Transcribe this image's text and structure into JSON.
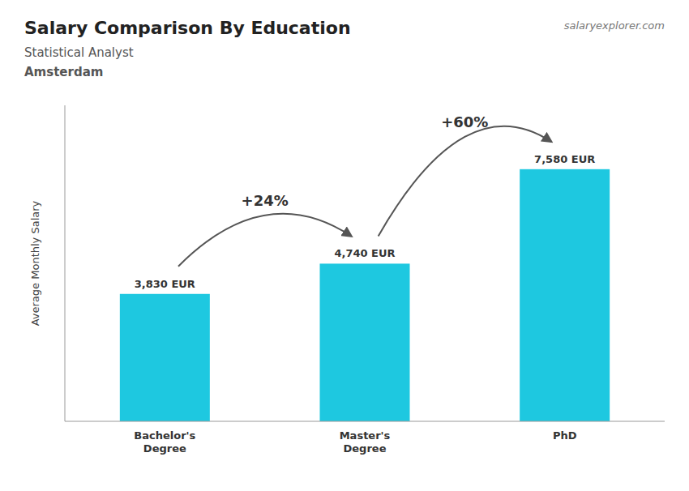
{
  "chart_data": {
    "type": "bar",
    "title": "Salary Comparison By Education",
    "subtitle": "Statistical Analyst",
    "location": "Amsterdam",
    "source": "salaryexplorer.com",
    "ylabel": "Average Monthly Salary",
    "categories": [
      "Bachelor's\nDegree",
      "Master's\nDegree",
      "PhD"
    ],
    "values": [
      3830,
      4740,
      7580
    ],
    "value_labels": [
      "3,830 EUR",
      "4,740 EUR",
      "7,580 EUR"
    ],
    "annotations": [
      "+24%",
      "+60%"
    ],
    "color": "#1ec8e0",
    "ylim": [
      0,
      9500
    ],
    "data_labels": true,
    "tick_labels": "x",
    "grid": false
  }
}
